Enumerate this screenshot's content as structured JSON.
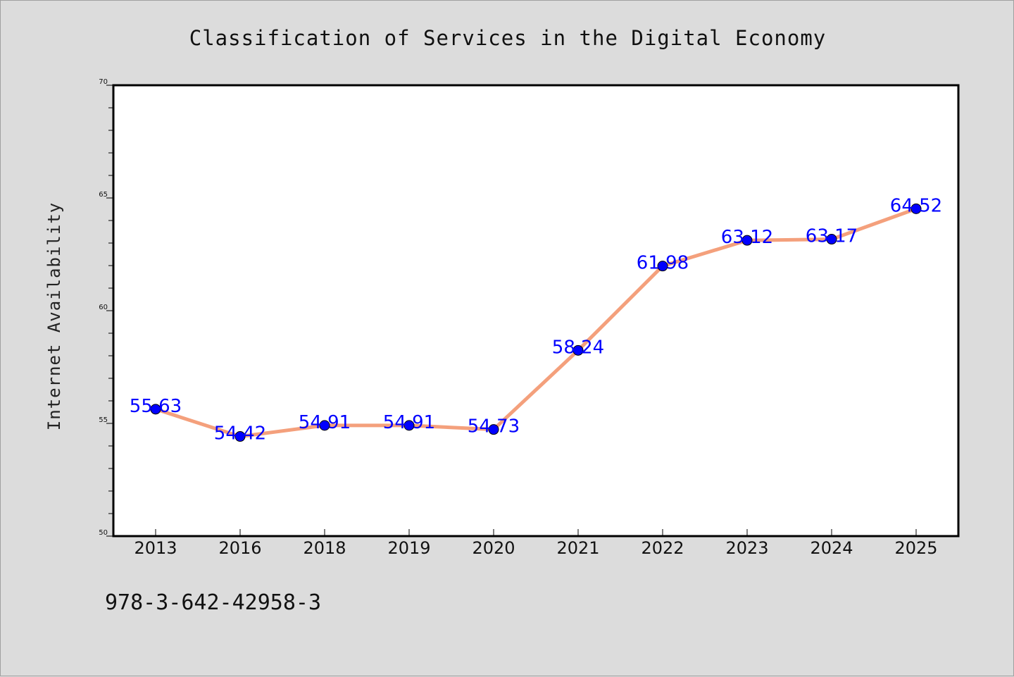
{
  "chart_data": {
    "type": "line",
    "title": "Classification of Services in the Digital Economy",
    "ylabel": "Internet Availability",
    "xlabel": "",
    "categories": [
      "2013",
      "2016",
      "2018",
      "2019",
      "2020",
      "2021",
      "2022",
      "2023",
      "2024",
      "2025"
    ],
    "series": [
      {
        "values": [
          55.63,
          54.42,
          54.91,
          54.91,
          54.73,
          58.24,
          61.98,
          63.12,
          63.17,
          64.52
        ],
        "labels": [
          "55.63",
          "54.42",
          "54.91",
          "54.91",
          "54.73",
          "58.24",
          "61.98",
          "63.12",
          "63.17",
          "64.52"
        ],
        "line_color": "#f4a07c",
        "marker_color": "#0000ff"
      }
    ],
    "ylim": [
      50,
      70
    ],
    "yticks": [
      "50",
      "55",
      "60",
      "65",
      "70"
    ],
    "grid": false,
    "legend": "none"
  },
  "footer": {
    "code": "978-3-642-42958-3"
  }
}
